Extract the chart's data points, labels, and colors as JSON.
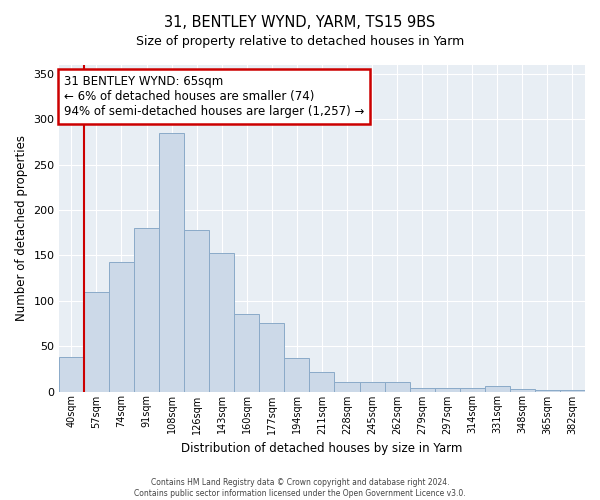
{
  "title": "31, BENTLEY WYND, YARM, TS15 9BS",
  "subtitle": "Size of property relative to detached houses in Yarm",
  "xlabel": "Distribution of detached houses by size in Yarm",
  "ylabel": "Number of detached properties",
  "bar_labels": [
    "40sqm",
    "57sqm",
    "74sqm",
    "91sqm",
    "108sqm",
    "126sqm",
    "143sqm",
    "160sqm",
    "177sqm",
    "194sqm",
    "211sqm",
    "228sqm",
    "245sqm",
    "262sqm",
    "279sqm",
    "297sqm",
    "314sqm",
    "331sqm",
    "348sqm",
    "365sqm",
    "382sqm"
  ],
  "bar_values": [
    38,
    110,
    143,
    180,
    285,
    178,
    153,
    85,
    75,
    37,
    21,
    11,
    11,
    10,
    4,
    4,
    4,
    6,
    3,
    2,
    2
  ],
  "bar_color": "#ccd9e8",
  "bar_edge_color": "#8aaac8",
  "vline_x": 1.0,
  "vline_color": "#cc0000",
  "ylim": [
    0,
    360
  ],
  "yticks": [
    0,
    50,
    100,
    150,
    200,
    250,
    300,
    350
  ],
  "annotation_title": "31 BENTLEY WYND: 65sqm",
  "annotation_line1": "← 6% of detached houses are smaller (74)",
  "annotation_line2": "94% of semi-detached houses are larger (1,257) →",
  "annotation_box_color": "#ffffff",
  "annotation_box_edge_color": "#cc0000",
  "fig_bg": "#ffffff",
  "plot_bg": "#e8eef4",
  "footer1": "Contains HM Land Registry data © Crown copyright and database right 2024.",
  "footer2": "Contains public sector information licensed under the Open Government Licence v3.0."
}
